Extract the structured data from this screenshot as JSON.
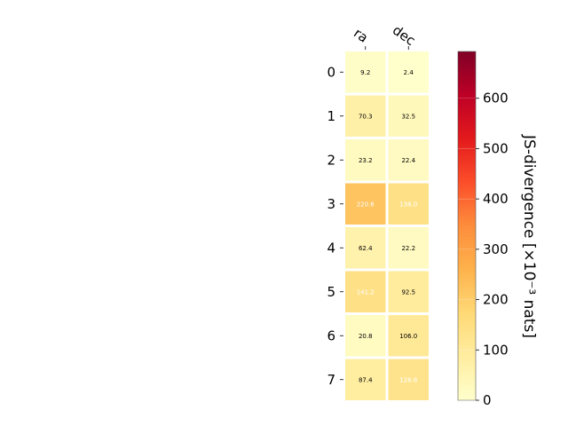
{
  "chart_data": {
    "type": "heatmap",
    "columns": [
      "ra",
      "dec"
    ],
    "rows": [
      "0",
      "1",
      "2",
      "3",
      "4",
      "5",
      "6",
      "7"
    ],
    "values": [
      [
        9.2,
        2.4
      ],
      [
        70.3,
        32.5
      ],
      [
        23.2,
        22.4
      ],
      [
        220.6,
        138.0
      ],
      [
        62.4,
        22.2
      ],
      [
        141.2,
        92.5
      ],
      [
        20.8,
        106.0
      ],
      [
        87.4,
        128.8
      ]
    ],
    "value_labels": [
      [
        "9.2",
        "2.4"
      ],
      [
        "70.3",
        "32.5"
      ],
      [
        "23.2",
        "22.4"
      ],
      [
        "220.6",
        "138.0"
      ],
      [
        "62.4",
        "22.2"
      ],
      [
        "141.2",
        "92.5"
      ],
      [
        "20.8",
        "106.0"
      ],
      [
        "87.4",
        "128.8"
      ]
    ],
    "colorbar": {
      "label": "JS-divergence [×10⁻³ nats]",
      "range": [
        0,
        693
      ],
      "ticks": [
        0,
        100,
        200,
        300,
        400,
        500,
        600
      ],
      "colormap": "YlOrRd"
    },
    "grid": false
  }
}
